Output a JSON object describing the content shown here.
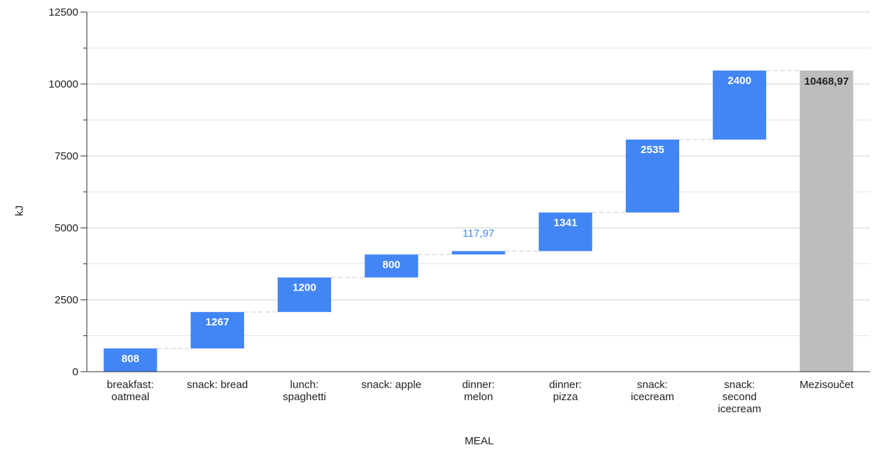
{
  "chart_data": {
    "type": "waterfall",
    "categories": [
      "breakfast: oatmeal",
      "snack: bread",
      "lunch: spaghetti",
      "snack: apple",
      "dinner: melon",
      "dinner: pizza",
      "snack: icecream",
      "snack: second icecream"
    ],
    "values": [
      808,
      1267,
      1200,
      800,
      117.97,
      1341,
      2535,
      2400
    ],
    "value_labels": [
      "808",
      "1267",
      "1200",
      "800",
      "117,97",
      "1341",
      "2535",
      "2400"
    ],
    "total": {
      "label": "Mezisoučet",
      "value": 10468.97,
      "value_label": "10468,97"
    },
    "xlabel": "MEAL",
    "ylabel": "kJ",
    "ylim": [
      0,
      12500
    ],
    "yticks": [
      0,
      2500,
      5000,
      7500,
      10000,
      12500
    ],
    "grid": true,
    "colors": {
      "increase": "#4285f4",
      "total": "#bdbdbd",
      "grid": "#d9d9d9",
      "connector": "#cccccc",
      "axis": "#333333"
    }
  }
}
